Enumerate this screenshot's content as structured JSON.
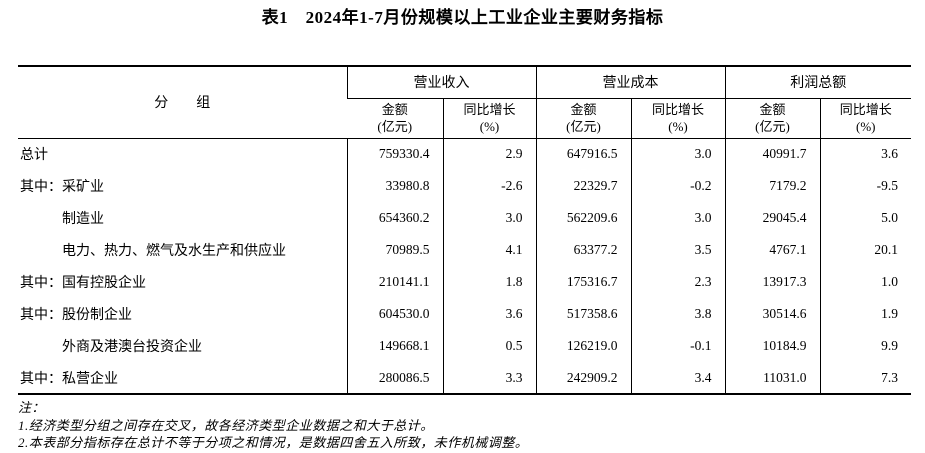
{
  "page": {
    "background": "#ffffff",
    "text_color": "#000000",
    "border_color": "#000000"
  },
  "title": "表1　2024年1-7月份规模以上工业企业主要财务指标",
  "table": {
    "group_header": "分　　组",
    "col_groups": [
      {
        "label": "营业收入"
      },
      {
        "label": "营业成本"
      },
      {
        "label": "利润总额"
      }
    ],
    "sub_headers": {
      "amount_line1": "金额",
      "amount_line2": "(亿元)",
      "growth_line1": "同比增长",
      "growth_line2": "(%)"
    },
    "rows": [
      {
        "label": "总计",
        "values": [
          "759330.4",
          "2.9",
          "647916.5",
          "3.0",
          "40991.7",
          "3.6"
        ]
      },
      {
        "label": "其中：采矿业",
        "values": [
          "33980.8",
          "-2.6",
          "22329.7",
          "-0.2",
          "7179.2",
          "-9.5"
        ]
      },
      {
        "label": "制造业",
        "values": [
          "654360.2",
          "3.0",
          "562209.6",
          "3.0",
          "29045.4",
          "5.0"
        ]
      },
      {
        "label": "电力、热力、燃气及水生产和供应业",
        "values": [
          "70989.5",
          "4.1",
          "63377.2",
          "3.5",
          "4767.1",
          "20.1"
        ]
      },
      {
        "label": "其中：国有控股企业",
        "values": [
          "210141.1",
          "1.8",
          "175316.7",
          "2.3",
          "13917.3",
          "1.0"
        ]
      },
      {
        "label": "其中：股份制企业",
        "values": [
          "604530.0",
          "3.6",
          "517358.6",
          "3.8",
          "30514.6",
          "1.9"
        ]
      },
      {
        "label": "外商及港澳台投资企业",
        "values": [
          "149668.1",
          "0.5",
          "126219.0",
          "-0.1",
          "10184.9",
          "9.9"
        ]
      },
      {
        "label": "其中：私营企业",
        "values": [
          "280086.5",
          "3.3",
          "242909.2",
          "3.4",
          "11031.0",
          "7.3"
        ]
      }
    ]
  },
  "notes": [
    "注：",
    "1.经济类型分组之间存在交叉，故各经济类型企业数据之和大于总计。",
    "2.本表部分指标存在总计不等于分项之和情况，是数据四舍五入所致，未作机械调整。"
  ]
}
